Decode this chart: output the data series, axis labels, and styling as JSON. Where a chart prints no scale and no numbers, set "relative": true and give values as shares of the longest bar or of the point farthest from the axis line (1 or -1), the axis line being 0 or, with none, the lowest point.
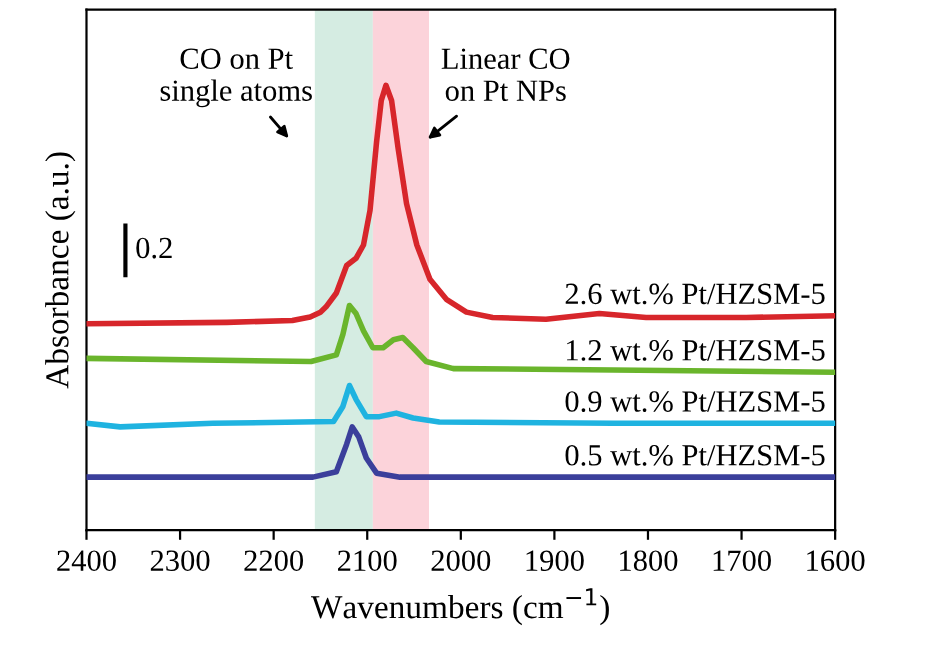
{
  "chart_data": {
    "type": "line",
    "relative": true,
    "xlabel": "Wavenumbers (cm$^{−1}$)",
    "ylabel": "Absorbance (a.u.)",
    "xlim": [
      2400,
      1600
    ],
    "xticks": [
      2400,
      2300,
      2200,
      2100,
      2000,
      1900,
      1800,
      1700,
      1600
    ],
    "grid": false,
    "legend": false,
    "marker": "none",
    "line_style": "solid",
    "annotations": [
      "CO on Pt\nsingle atoms",
      "Linear CO\non Pt NPs",
      "0.2"
    ],
    "bands": [
      {
        "axis": "x",
        "from": 2156,
        "to": 2094,
        "color": "#d5ece2"
      },
      {
        "axis": "x",
        "from": 2094,
        "to": 2034,
        "color": "#fcd3da"
      }
    ],
    "series": [
      {
        "name": "2.6 wt.% Pt/HZSM-5",
        "color": "#d7262b",
        "x": [
          2400,
          2250,
          2180,
          2161,
          2150,
          2144,
          2133,
          2122,
          2112,
          2104,
          2097,
          2090,
          2085,
          2080,
          2074,
          2067,
          2058,
          2047,
          2033,
          2015,
          1994,
          1966,
          1909,
          1852,
          1802,
          1695,
          1600
        ],
        "values": [
          0.464,
          0.467,
          0.471,
          0.479,
          0.49,
          0.502,
          0.533,
          0.595,
          0.611,
          0.641,
          0.719,
          0.873,
          0.966,
          1,
          0.966,
          0.858,
          0.734,
          0.641,
          0.564,
          0.518,
          0.49,
          0.478,
          0.474,
          0.487,
          0.478,
          0.478,
          0.482
        ]
      },
      {
        "name": "1.2 wt.% Pt/HZSM-5",
        "color": "#6ab52c",
        "x": [
          2400,
          2160,
          2133,
          2126,
          2119,
          2112,
          2104,
          2094,
          2083,
          2072,
          2062,
          2051,
          2037,
          2008,
          1837,
          1600
        ],
        "values": [
          0.386,
          0.379,
          0.394,
          0.44,
          0.505,
          0.487,
          0.448,
          0.41,
          0.41,
          0.428,
          0.433,
          0.41,
          0.379,
          0.363,
          0.36,
          0.355
        ]
      },
      {
        "name": "0.9 wt.% Pt/HZSM-5",
        "color": "#1fb3e0",
        "x": [
          2400,
          2364,
          2265,
          2136,
          2126,
          2119,
          2112,
          2101,
          2087,
          2069,
          2051,
          2023,
          1837,
          1600
        ],
        "values": [
          0.24,
          0.232,
          0.24,
          0.244,
          0.278,
          0.325,
          0.294,
          0.255,
          0.255,
          0.263,
          0.252,
          0.243,
          0.24,
          0.24
        ]
      },
      {
        "name": "0.5 wt.% Pt/HZSM-5",
        "color": "#3b3f9b",
        "x": [
          2400,
          2158,
          2133,
          2122,
          2116,
          2109,
          2101,
          2090,
          2065,
          1600
        ],
        "values": [
          0.119,
          0.119,
          0.131,
          0.193,
          0.232,
          0.209,
          0.162,
          0.128,
          0.119,
          0.119
        ]
      }
    ]
  }
}
